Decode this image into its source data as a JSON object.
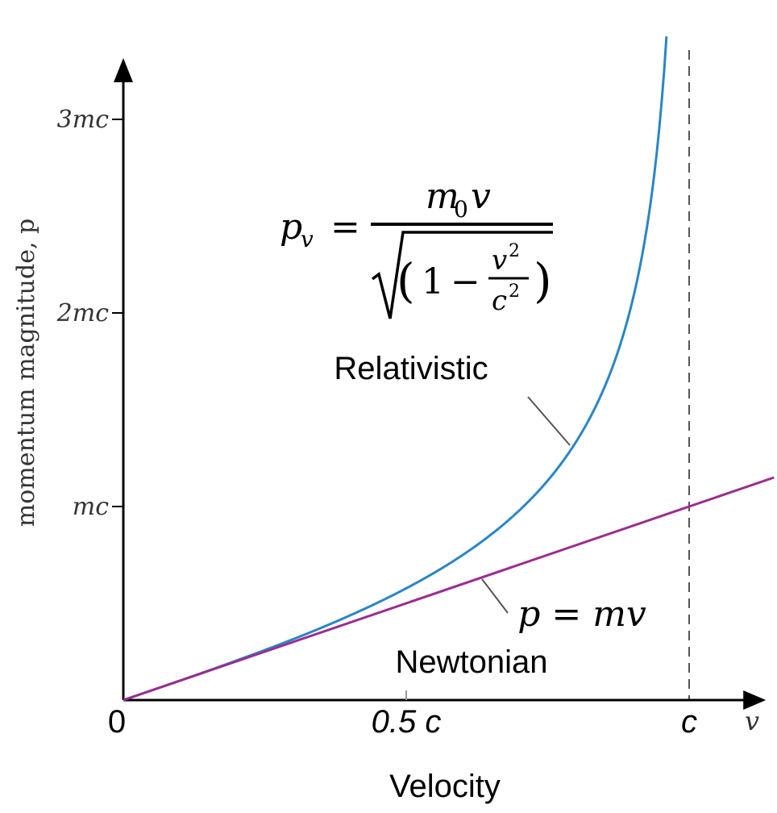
{
  "chart_data": {
    "type": "line",
    "title": "",
    "xlabel": "Velocity",
    "ylabel": "momentum magnitude, p",
    "x_axis_symbol": "v",
    "x_units": "c",
    "y_units": "mc",
    "xlim": [
      0,
      1.1
    ],
    "ylim": [
      0,
      3.4
    ],
    "x_ticks": [
      {
        "value": 0,
        "label": "0"
      },
      {
        "value": 0.5,
        "label": "0.5 c"
      },
      {
        "value": 1.0,
        "label": "c"
      }
    ],
    "y_ticks": [
      {
        "value": 1,
        "label": "mc"
      },
      {
        "value": 2,
        "label": "2mc"
      },
      {
        "value": 3,
        "label": "3mc"
      }
    ],
    "asymptote": {
      "x": 1.0,
      "style": "dashed"
    },
    "series": [
      {
        "name": "Relativistic",
        "formula": "p = m0 v / sqrt(1 - v^2/c^2)",
        "color": "#2a86c4",
        "x": [
          0,
          0.1,
          0.2,
          0.3,
          0.4,
          0.5,
          0.6,
          0.7,
          0.75,
          0.8,
          0.85,
          0.9,
          0.93,
          0.95,
          0.96
        ],
        "values": [
          0,
          0.1005,
          0.2041,
          0.3145,
          0.4364,
          0.5774,
          0.75,
          0.9802,
          1.1339,
          1.3333,
          1.6136,
          2.0647,
          2.5302,
          3.0424,
          3.4286
        ]
      },
      {
        "name": "Newtonian",
        "formula": "p = mv",
        "color": "#9b2d8f",
        "x": [
          0,
          1.15
        ],
        "values": [
          0,
          1.15
        ]
      }
    ],
    "annotations": {
      "relativistic_equation": {
        "lhs": "p",
        "lhs_sub": "v",
        "equals": "=",
        "numerator": "m",
        "numerator_sub": "0",
        "numerator_var": "v",
        "one": "1",
        "minus": "−",
        "v_sq": "v",
        "c_sq": "c",
        "exp": "2",
        "open_paren": "(",
        "close_paren": ")"
      },
      "relativistic_label": "Relativistic",
      "newtonian_equation": "p = mv",
      "newtonian_label": "Newtonian"
    }
  }
}
